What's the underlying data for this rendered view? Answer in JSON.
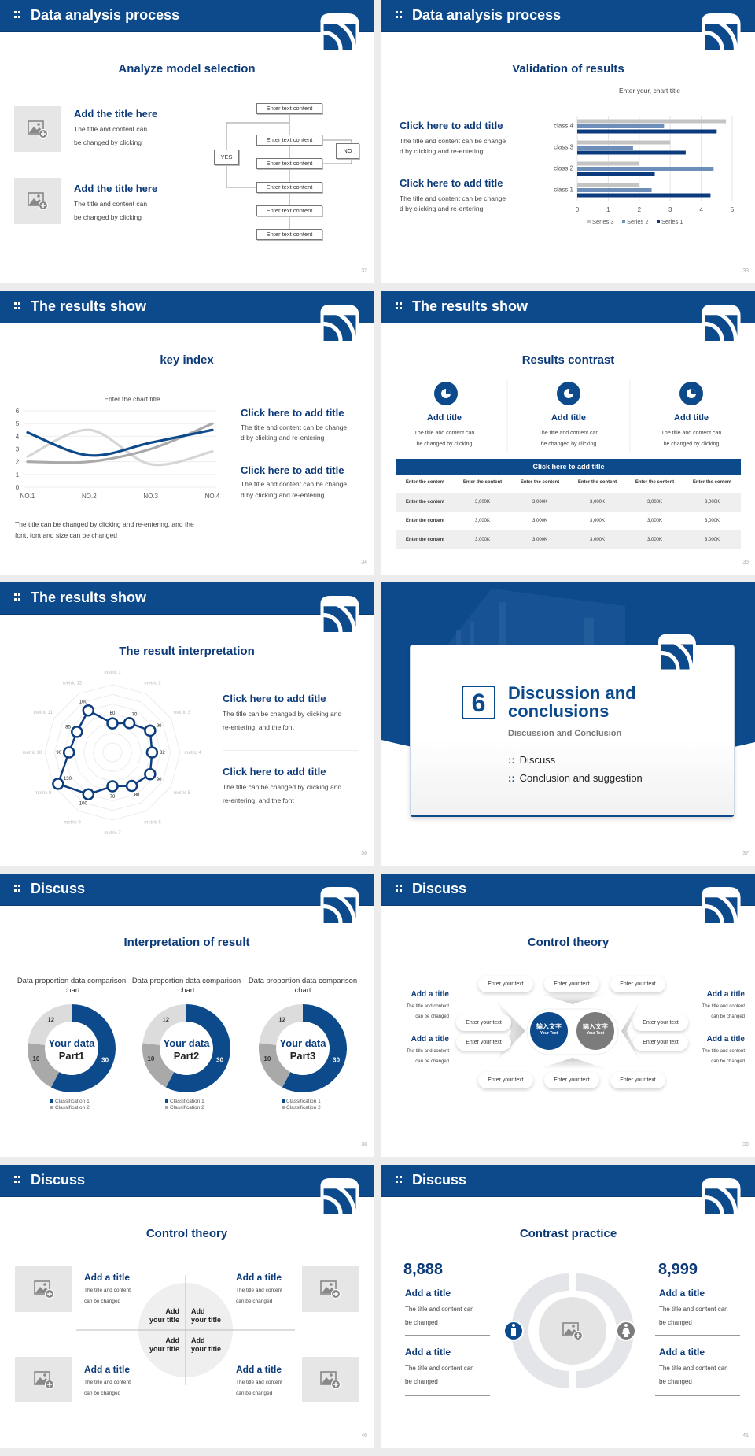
{
  "colors": {
    "brand_blue": "#0c4a8c",
    "title_blue": "#0d3a78",
    "gray": "#a8a8a8",
    "light_gray": "#d8d8d8"
  },
  "slides": [
    {
      "header": "Data analysis process",
      "subtitle": "Analyze model selection",
      "page": "32",
      "items": [
        {
          "title": "Add the title here",
          "text": "The title and content can",
          "text2": "be changed by clicking"
        },
        {
          "title": "Add the title here",
          "text": "The title and content can",
          "text2": "be changed by clicking"
        }
      ],
      "flow": {
        "boxes": [
          "Enter text content",
          "Enter text content",
          "Enter text content",
          "Enter text content",
          "Enter text content",
          "Enter text content"
        ],
        "yes": "YES",
        "no": "NO"
      }
    },
    {
      "header": "Data analysis process",
      "subtitle": "Validation of results",
      "page": "33",
      "items": [
        {
          "title": "Click here to add title",
          "text": "The title and content can be change",
          "text2": "d by clicking and re-entering"
        },
        {
          "title": "Click here to add title",
          "text": "The title and content can be change",
          "text2": "d by clicking and re-entering"
        }
      ]
    },
    {
      "header": "The results show",
      "subtitle": "key index",
      "page": "34",
      "items": [
        {
          "title": "Click here to add title",
          "text": "The title and content can be change",
          "text2": "d by clicking and re-entering"
        },
        {
          "title": "Click here to add title",
          "text": "The title and content can be change",
          "text2": "d by clicking and re-entering"
        }
      ],
      "caption": "The title can be changed by clicking and re-entering, and the",
      "caption2": "font, font and size can be changed"
    },
    {
      "header": "The results show",
      "subtitle": "Results contrast",
      "page": "35",
      "cols": [
        {
          "title": "Add title",
          "text": "The title and content can",
          "text2": "be changed by clicking",
          "icon": "pie-chart-icon"
        },
        {
          "title": "Add title",
          "text": "The title and content can",
          "text2": "be changed by clicking",
          "icon": "pie-chart-icon"
        },
        {
          "title": "Add title",
          "text": "The title and content can",
          "text2": "be changed by clicking",
          "icon": "pie-chart-icon"
        }
      ],
      "table": {
        "title": "Click here to add title",
        "header": [
          "Enter the content",
          "Enter the content",
          "Enter the content",
          "Enter the content",
          "Enter the content",
          "Enter the content"
        ],
        "rows": [
          [
            "Enter the content",
            "3,000K",
            "3,000K",
            "3,000K",
            "3,000K",
            "3,000K"
          ],
          [
            "Enter the content",
            "3,000K",
            "3,000K",
            "3,000K",
            "3,000K",
            "3,000K"
          ],
          [
            "Enter the content",
            "3,000K",
            "3,000K",
            "3,000K",
            "3,000K",
            "3,000K"
          ]
        ]
      }
    },
    {
      "header": "The results show",
      "subtitle": "The result interpretation",
      "page": "36",
      "items": [
        {
          "title": "Click here to add  title",
          "text": "The title can be changed by clicking and",
          "text2": "re-entering, and the font"
        },
        {
          "title": "Click here to add  title",
          "text": "The title can be changed by clicking and",
          "text2": "re-entering, and the font"
        }
      ]
    },
    {
      "section_number": "6",
      "title1": "Discussion and",
      "title2": "conclusions",
      "subtitle": "Discussion and Conclusion",
      "bullets": [
        "Discuss",
        "Conclusion and suggestion"
      ],
      "page": "37"
    },
    {
      "header": "Discuss",
      "subtitle": "Interpretation of result",
      "page": "38",
      "donut_centers": [
        {
          "line1": "Your data",
          "line2": "Part1"
        },
        {
          "line1": "Your data",
          "line2": "Part2"
        },
        {
          "line1": "Your data",
          "line2": "Part3"
        }
      ]
    },
    {
      "header": "Discuss",
      "subtitle": "Control theory",
      "page": "39",
      "pills": [
        "Enter your text",
        "Enter your text",
        "Enter your text",
        "Enter your text",
        "Enter your text",
        "Enter your text",
        "Enter your text",
        "Enter your text",
        "Enter your text",
        "Enter your text"
      ],
      "center_left": {
        "cn": "输入文字",
        "en": "Your Text"
      },
      "center_right": {
        "cn": "输入文字",
        "en": "Your Text"
      },
      "items": [
        {
          "title": "Add a title",
          "text": "The title and content",
          "text2": "can be changed"
        },
        {
          "title": "Add a title",
          "text": "The title and content",
          "text2": "can be changed"
        },
        {
          "title": "Add a title",
          "text": "The title and content",
          "text2": "can be changed"
        },
        {
          "title": "Add a title",
          "text": "The title and content",
          "text2": "can be changed"
        }
      ]
    },
    {
      "header": "Discuss",
      "subtitle": "Control theory",
      "page": "40",
      "items": [
        {
          "title": "Add a title",
          "text": "The title and content",
          "text2": "can be changed"
        },
        {
          "title": "Add a title",
          "text": "The title and content",
          "text2": "can be changed"
        },
        {
          "title": "Add a title",
          "text": "The title and content",
          "text2": "can be changed"
        },
        {
          "title": "Add a title",
          "text": "The title and content",
          "text2": "can be changed"
        }
      ],
      "quadrants": [
        {
          "l1": "Add",
          "l2": "your title"
        },
        {
          "l1": "Add",
          "l2": "your title"
        },
        {
          "l1": "Add",
          "l2": "your title"
        },
        {
          "l1": "Add",
          "l2": "your title"
        }
      ]
    },
    {
      "header": "Discuss",
      "subtitle": "Contrast practice",
      "page": "41",
      "left_value": "8,888",
      "right_value": "8,999",
      "items": [
        {
          "title": "Add a title",
          "text": "The title and content can",
          "text2": "be changed"
        },
        {
          "title": "Add a title",
          "text": "The title and content can",
          "text2": "be changed"
        },
        {
          "title": "Add a title",
          "text": "The title and content can",
          "text2": "be changed"
        },
        {
          "title": "Add a title",
          "text": "The title and content can",
          "text2": "be changed"
        }
      ]
    }
  ],
  "chart_data": [
    {
      "type": "bar",
      "orientation": "horizontal",
      "title": "Enter your, chart title",
      "categories": [
        "class 1",
        "class 2",
        "class 3",
        "class 4"
      ],
      "series": [
        {
          "name": "Series 1",
          "color": "#0b3b7e",
          "values": [
            4.3,
            2.5,
            3.5,
            4.5
          ]
        },
        {
          "name": "Series 2",
          "color": "#6d8eb8",
          "values": [
            2.4,
            4.4,
            1.8,
            2.8
          ]
        },
        {
          "name": "Series 3",
          "color": "#c4c4c4",
          "values": [
            2,
            2,
            3,
            4.8
          ]
        }
      ],
      "xlim": [
        0,
        5
      ],
      "ticks": [
        "0",
        "1",
        "2",
        "3",
        "4",
        "5"
      ],
      "legend": "bottom",
      "grid": true
    },
    {
      "type": "line",
      "title": "Enter the chart title",
      "categories": [
        "NO.1",
        "NO.2",
        "NO.3",
        "NO.4"
      ],
      "series": [
        {
          "color": "#0d4a8c",
          "values": [
            4.3,
            2.5,
            3.5,
            4.5
          ]
        },
        {
          "color": "#d6d6d6",
          "values": [
            2.4,
            4.5,
            1.8,
            2.8
          ]
        },
        {
          "color": "#a9a9a9",
          "values": [
            2,
            2,
            3,
            5
          ]
        }
      ],
      "ylim": [
        0,
        6
      ],
      "yticks": [
        "0",
        "1",
        "2",
        "3",
        "4",
        "5",
        "6"
      ],
      "grid": true
    },
    {
      "type": "radar",
      "categories": [
        "metric 1",
        "metric 2",
        "metric 3",
        "metric 4",
        "metric 5",
        "metric 6",
        "metric 7",
        "metric 8",
        "metric 9",
        "metric 10",
        "metric 11",
        "metric 12"
      ],
      "values": [
        60,
        70,
        90,
        82,
        90,
        80,
        70,
        100,
        130,
        90,
        85,
        100
      ],
      "labels": [
        "60",
        "70",
        "90",
        "82",
        "90",
        "80",
        "70",
        "100",
        "130",
        "90",
        "85",
        "100"
      ],
      "rlim": [
        0,
        140
      ]
    },
    {
      "type": "pie",
      "donut": true,
      "title": "Data proportion data comparison chart",
      "categories": [
        "Classification 1",
        "Classification 2",
        ""
      ],
      "values": [
        30,
        10,
        12
      ],
      "labels": [
        "30",
        "10",
        "12"
      ],
      "colors": [
        "#0c4a8c",
        "#a9a9a9",
        "#dcdcdc"
      ],
      "legend": [
        "Classification 1",
        "Classification 2"
      ]
    },
    {
      "type": "pie",
      "donut": true,
      "title": "Data proportion data comparison chart",
      "categories": [
        "Classification 1",
        "Classification 2",
        ""
      ],
      "values": [
        30,
        10,
        12
      ],
      "labels": [
        "30",
        "10",
        "12"
      ],
      "colors": [
        "#0c4a8c",
        "#a9a9a9",
        "#dcdcdc"
      ],
      "legend": [
        "Classification 1",
        "Classification 2"
      ]
    },
    {
      "type": "pie",
      "donut": true,
      "title": "Data proportion data comparison chart",
      "categories": [
        "Classification 1",
        "Classification 2",
        ""
      ],
      "values": [
        30,
        10,
        12
      ],
      "labels": [
        "30",
        "10",
        "12"
      ],
      "colors": [
        "#0c4a8c",
        "#a9a9a9",
        "#dcdcdc"
      ],
      "legend": [
        "Classification 1",
        "Classification 2"
      ]
    }
  ]
}
